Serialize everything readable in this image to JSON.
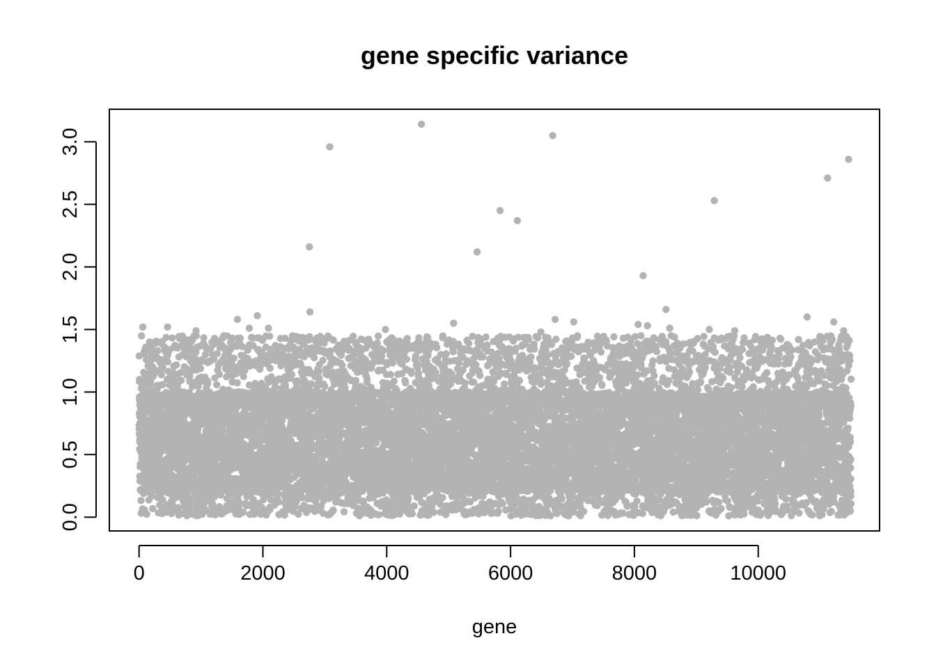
{
  "chart_data": {
    "type": "scatter",
    "title": "gene specific variance",
    "xlabel": "gene",
    "ylabel": "",
    "xlim": [
      -480,
      11960
    ],
    "ylim": [
      -0.11,
      3.26
    ],
    "x_ticks": [
      0,
      2000,
      4000,
      6000,
      8000,
      10000
    ],
    "x_tick_labels": [
      "0",
      "2000",
      "4000",
      "6000",
      "8000",
      "10000"
    ],
    "y_ticks": [
      0.0,
      0.5,
      1.0,
      1.5,
      2.0,
      2.5,
      3.0
    ],
    "y_tick_labels": [
      "0.0",
      "0.5",
      "1.0",
      "1.5",
      "2.0",
      "2.5",
      "3.0"
    ],
    "grid": false,
    "legend": "none",
    "point_color": "#b3b3b3",
    "n_points": 11500,
    "bulk": {
      "x_range": [
        0,
        11500
      ],
      "y_range": [
        0.0,
        1.45
      ],
      "dense_range": [
        0.2,
        1.0
      ]
    },
    "outliers": [
      {
        "x": 4560,
        "y": 3.14
      },
      {
        "x": 6680,
        "y": 3.05
      },
      {
        "x": 3080,
        "y": 2.96
      },
      {
        "x": 11460,
        "y": 2.86
      },
      {
        "x": 11120,
        "y": 2.71
      },
      {
        "x": 9290,
        "y": 2.53
      },
      {
        "x": 5830,
        "y": 2.45
      },
      {
        "x": 6110,
        "y": 2.37
      },
      {
        "x": 2750,
        "y": 2.16
      },
      {
        "x": 5460,
        "y": 2.12
      },
      {
        "x": 8140,
        "y": 1.93
      },
      {
        "x": 8510,
        "y": 1.66
      },
      {
        "x": 2760,
        "y": 1.64
      },
      {
        "x": 1910,
        "y": 1.61
      },
      {
        "x": 10790,
        "y": 1.6
      },
      {
        "x": 1590,
        "y": 1.58
      },
      {
        "x": 6720,
        "y": 1.58
      },
      {
        "x": 11220,
        "y": 1.56
      },
      {
        "x": 7020,
        "y": 1.56
      },
      {
        "x": 5080,
        "y": 1.55
      },
      {
        "x": 8060,
        "y": 1.54
      },
      {
        "x": 8210,
        "y": 1.53
      },
      {
        "x": 60,
        "y": 1.52
      },
      {
        "x": 460,
        "y": 1.52
      },
      {
        "x": 1780,
        "y": 1.51
      },
      {
        "x": 2090,
        "y": 1.51
      },
      {
        "x": 8570,
        "y": 1.51
      },
      {
        "x": 3980,
        "y": 1.5
      },
      {
        "x": 9210,
        "y": 1.5
      },
      {
        "x": 9620,
        "y": 1.49
      },
      {
        "x": 11380,
        "y": 1.49
      },
      {
        "x": 920,
        "y": 1.49
      },
      {
        "x": 6490,
        "y": 1.48
      }
    ]
  }
}
